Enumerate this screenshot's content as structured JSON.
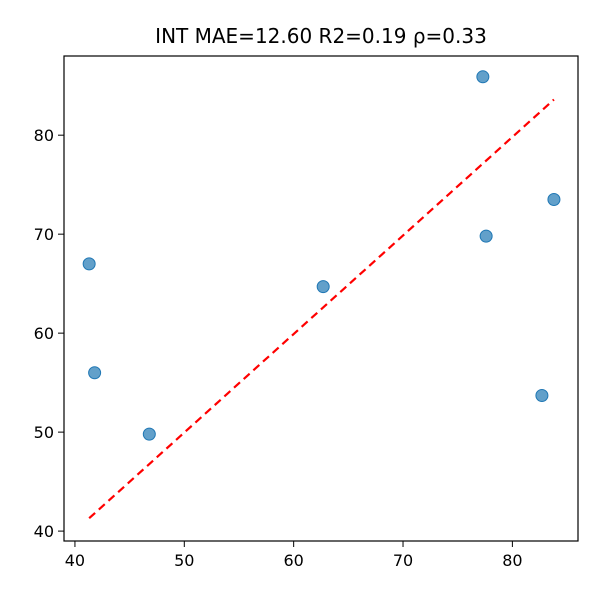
{
  "chart_data": {
    "type": "scatter",
    "title": "INT  MAE=12.60  R2=0.19  ρ=0.33",
    "xlabel": "",
    "ylabel": "",
    "xlim": [
      39,
      86
    ],
    "ylim": [
      39,
      88
    ],
    "xticks": [
      40,
      50,
      60,
      70,
      80
    ],
    "yticks": [
      40,
      50,
      60,
      70,
      80
    ],
    "points": [
      {
        "x": 41.3,
        "y": 67.0
      },
      {
        "x": 41.8,
        "y": 56.0
      },
      {
        "x": 46.8,
        "y": 49.8
      },
      {
        "x": 62.7,
        "y": 64.7
      },
      {
        "x": 77.3,
        "y": 85.9
      },
      {
        "x": 77.6,
        "y": 69.8
      },
      {
        "x": 82.7,
        "y": 53.7
      },
      {
        "x": 83.8,
        "y": 73.5
      }
    ],
    "fit_line": {
      "x": [
        41.3,
        83.8
      ],
      "y": [
        41.3,
        83.6
      ]
    },
    "colors": {
      "points": "#1f77b4",
      "fit_line": "#ff0000"
    },
    "grid": false,
    "legend": "none"
  }
}
